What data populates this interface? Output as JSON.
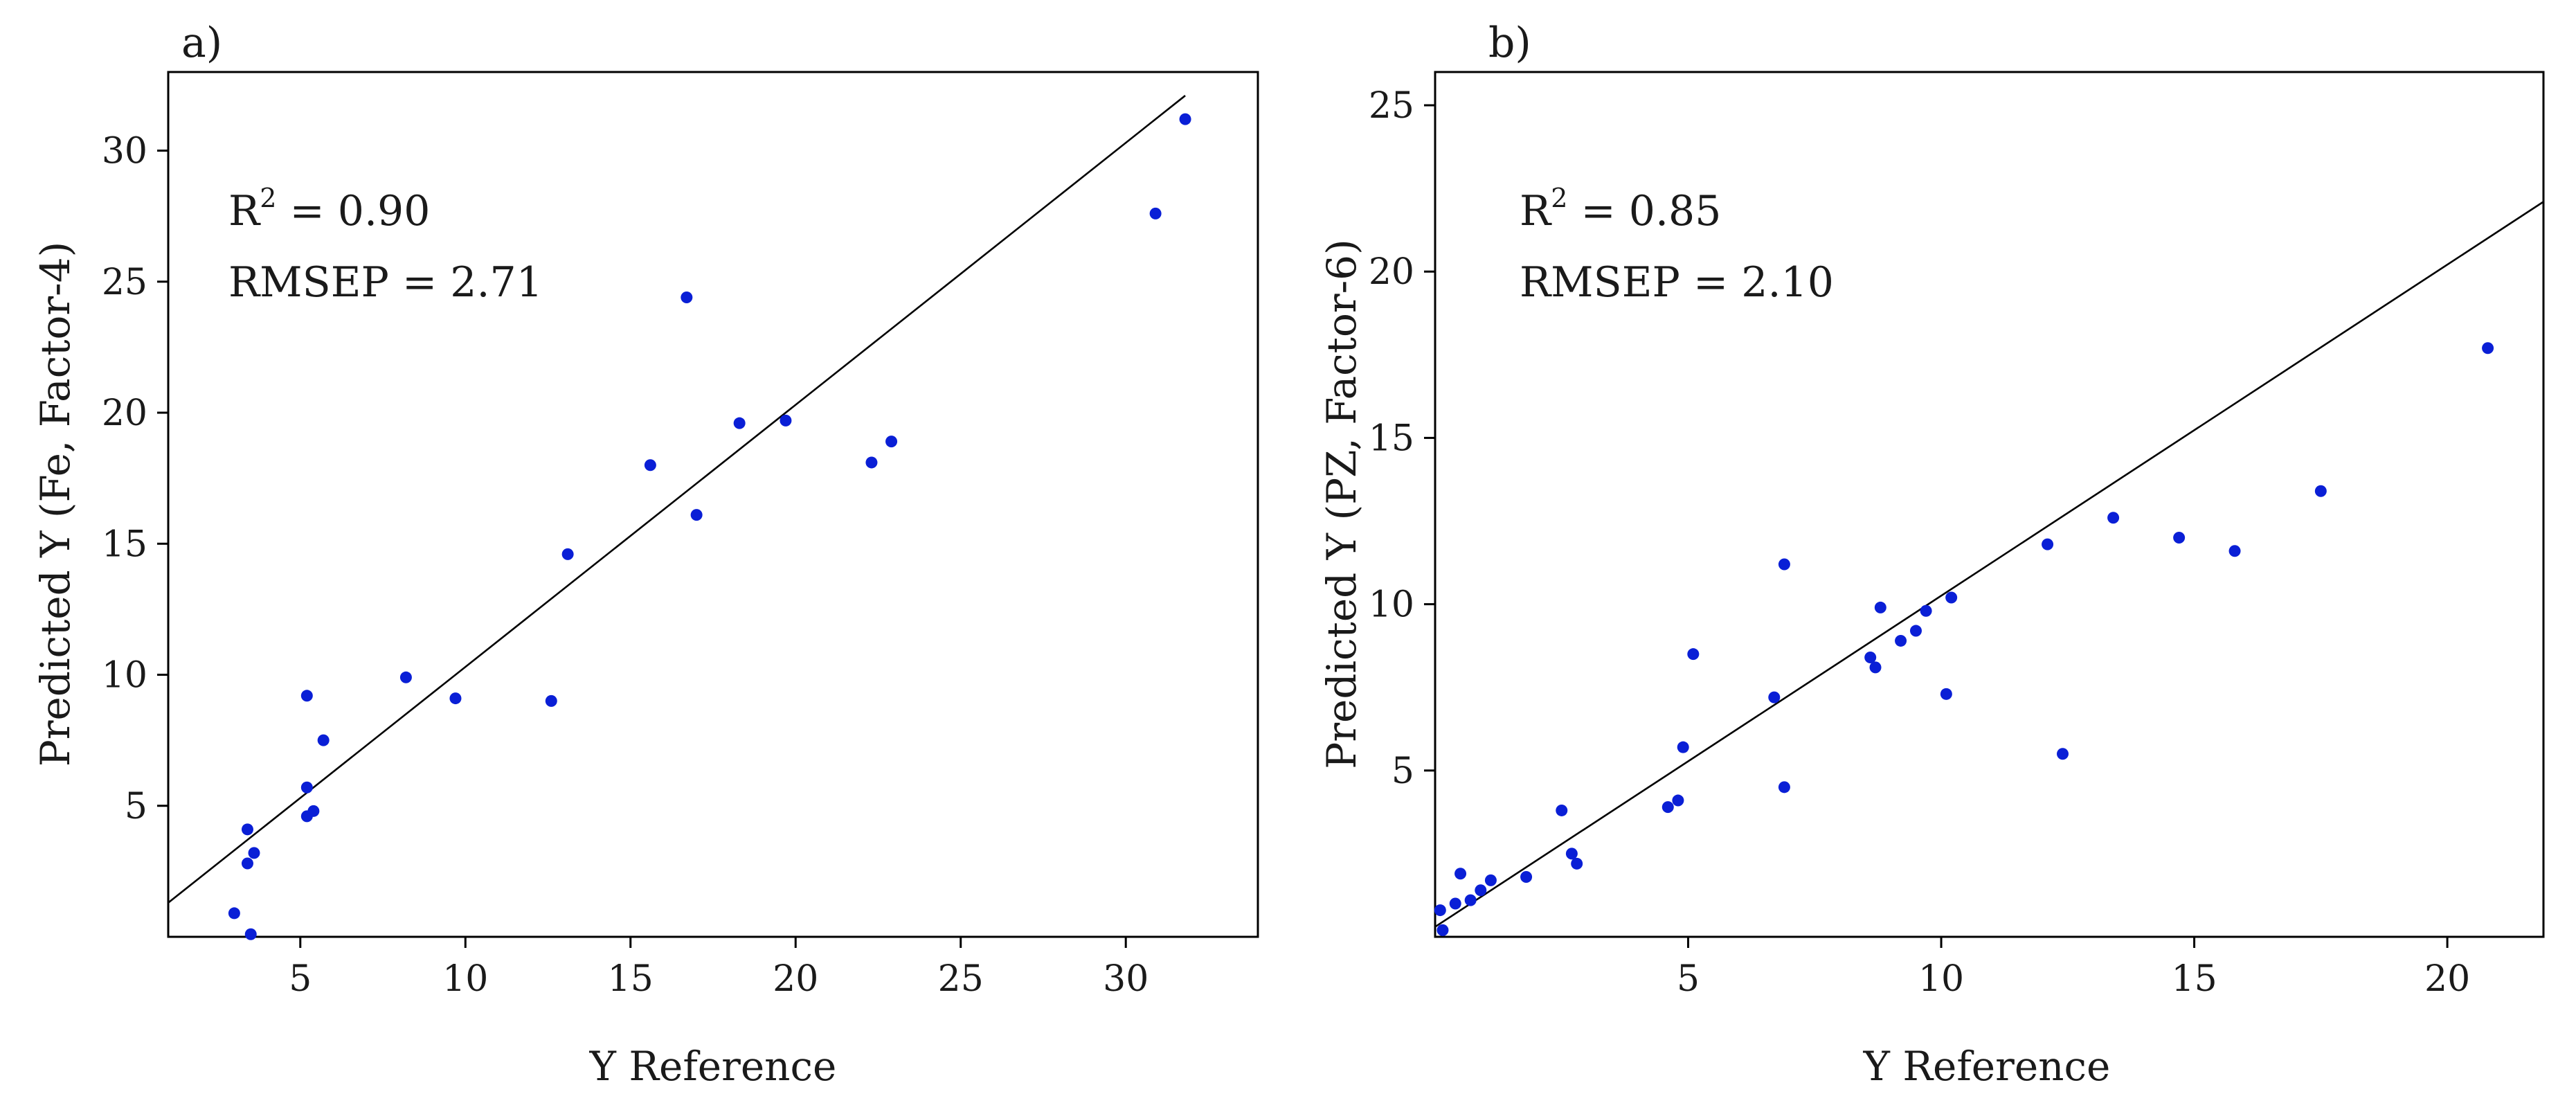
{
  "chart_data": [
    {
      "type": "scatter",
      "panel_label": "a)",
      "xlabel": "Y Reference",
      "ylabel": "Predicted Y (Fe, Factor-4)",
      "xlim": [
        1,
        34
      ],
      "ylim": [
        0,
        33
      ],
      "xticks": [
        5,
        10,
        15,
        20,
        25,
        30
      ],
      "yticks": [
        5,
        10,
        15,
        20,
        25,
        30
      ],
      "annotation": {
        "r2_prefix": "R",
        "r2_sup": "2",
        "r2_suffix": " = 0.90",
        "rmsep": "RMSEP = 2.71"
      },
      "fit_line": {
        "x": [
          1,
          31.8
        ],
        "y": [
          1.3,
          32.1
        ]
      },
      "points": [
        {
          "x": 3.0,
          "y": 0.9
        },
        {
          "x": 3.5,
          "y": 0.1
        },
        {
          "x": 3.4,
          "y": 2.8
        },
        {
          "x": 3.6,
          "y": 3.2
        },
        {
          "x": 3.4,
          "y": 4.1
        },
        {
          "x": 5.2,
          "y": 4.6
        },
        {
          "x": 5.4,
          "y": 4.8
        },
        {
          "x": 5.2,
          "y": 5.7
        },
        {
          "x": 5.7,
          "y": 7.5
        },
        {
          "x": 5.2,
          "y": 9.2
        },
        {
          "x": 8.2,
          "y": 9.9
        },
        {
          "x": 9.7,
          "y": 9.1
        },
        {
          "x": 12.6,
          "y": 9.0
        },
        {
          "x": 13.1,
          "y": 14.6
        },
        {
          "x": 15.6,
          "y": 18.0
        },
        {
          "x": 17.0,
          "y": 16.1
        },
        {
          "x": 16.7,
          "y": 24.4
        },
        {
          "x": 18.3,
          "y": 19.6
        },
        {
          "x": 19.7,
          "y": 19.7
        },
        {
          "x": 22.3,
          "y": 18.1
        },
        {
          "x": 22.9,
          "y": 18.9
        },
        {
          "x": 30.9,
          "y": 27.6
        },
        {
          "x": 31.8,
          "y": 31.2
        }
      ]
    },
    {
      "type": "scatter",
      "panel_label": "b)",
      "xlabel": "Y Reference",
      "ylabel": "Predicted Y (PZ, Factor-6)",
      "xlim": [
        0,
        21.9
      ],
      "ylim": [
        0,
        26
      ],
      "xticks": [
        5,
        10,
        15,
        20
      ],
      "yticks": [
        5,
        10,
        15,
        20,
        25
      ],
      "annotation": {
        "r2_prefix": "R",
        "r2_sup": "2",
        "r2_suffix": " = 0.85",
        "rmsep": "RMSEP = 2.10"
      },
      "fit_line": {
        "x": [
          0,
          21.9
        ],
        "y": [
          0.3,
          22.1
        ]
      },
      "points": [
        {
          "x": 0.15,
          "y": 0.2
        },
        {
          "x": 0.1,
          "y": 0.8
        },
        {
          "x": 0.4,
          "y": 1.0
        },
        {
          "x": 0.5,
          "y": 1.9
        },
        {
          "x": 0.7,
          "y": 1.1
        },
        {
          "x": 0.9,
          "y": 1.4
        },
        {
          "x": 1.1,
          "y": 1.7
        },
        {
          "x": 1.8,
          "y": 1.8
        },
        {
          "x": 2.5,
          "y": 3.8
        },
        {
          "x": 2.7,
          "y": 2.5
        },
        {
          "x": 2.8,
          "y": 2.2
        },
        {
          "x": 4.6,
          "y": 3.9
        },
        {
          "x": 4.8,
          "y": 4.1
        },
        {
          "x": 4.9,
          "y": 5.7
        },
        {
          "x": 5.1,
          "y": 8.5
        },
        {
          "x": 6.7,
          "y": 7.2
        },
        {
          "x": 6.9,
          "y": 4.5
        },
        {
          "x": 6.9,
          "y": 11.2
        },
        {
          "x": 8.6,
          "y": 8.4
        },
        {
          "x": 8.7,
          "y": 8.1
        },
        {
          "x": 8.8,
          "y": 9.9
        },
        {
          "x": 9.2,
          "y": 8.9
        },
        {
          "x": 9.5,
          "y": 9.2
        },
        {
          "x": 9.7,
          "y": 9.8
        },
        {
          "x": 10.1,
          "y": 7.3
        },
        {
          "x": 10.2,
          "y": 10.2
        },
        {
          "x": 12.1,
          "y": 11.8
        },
        {
          "x": 12.4,
          "y": 5.5
        },
        {
          "x": 13.4,
          "y": 12.6
        },
        {
          "x": 14.7,
          "y": 12.0
        },
        {
          "x": 15.8,
          "y": 11.6
        },
        {
          "x": 17.5,
          "y": 13.4
        },
        {
          "x": 20.8,
          "y": 17.7
        }
      ]
    }
  ]
}
